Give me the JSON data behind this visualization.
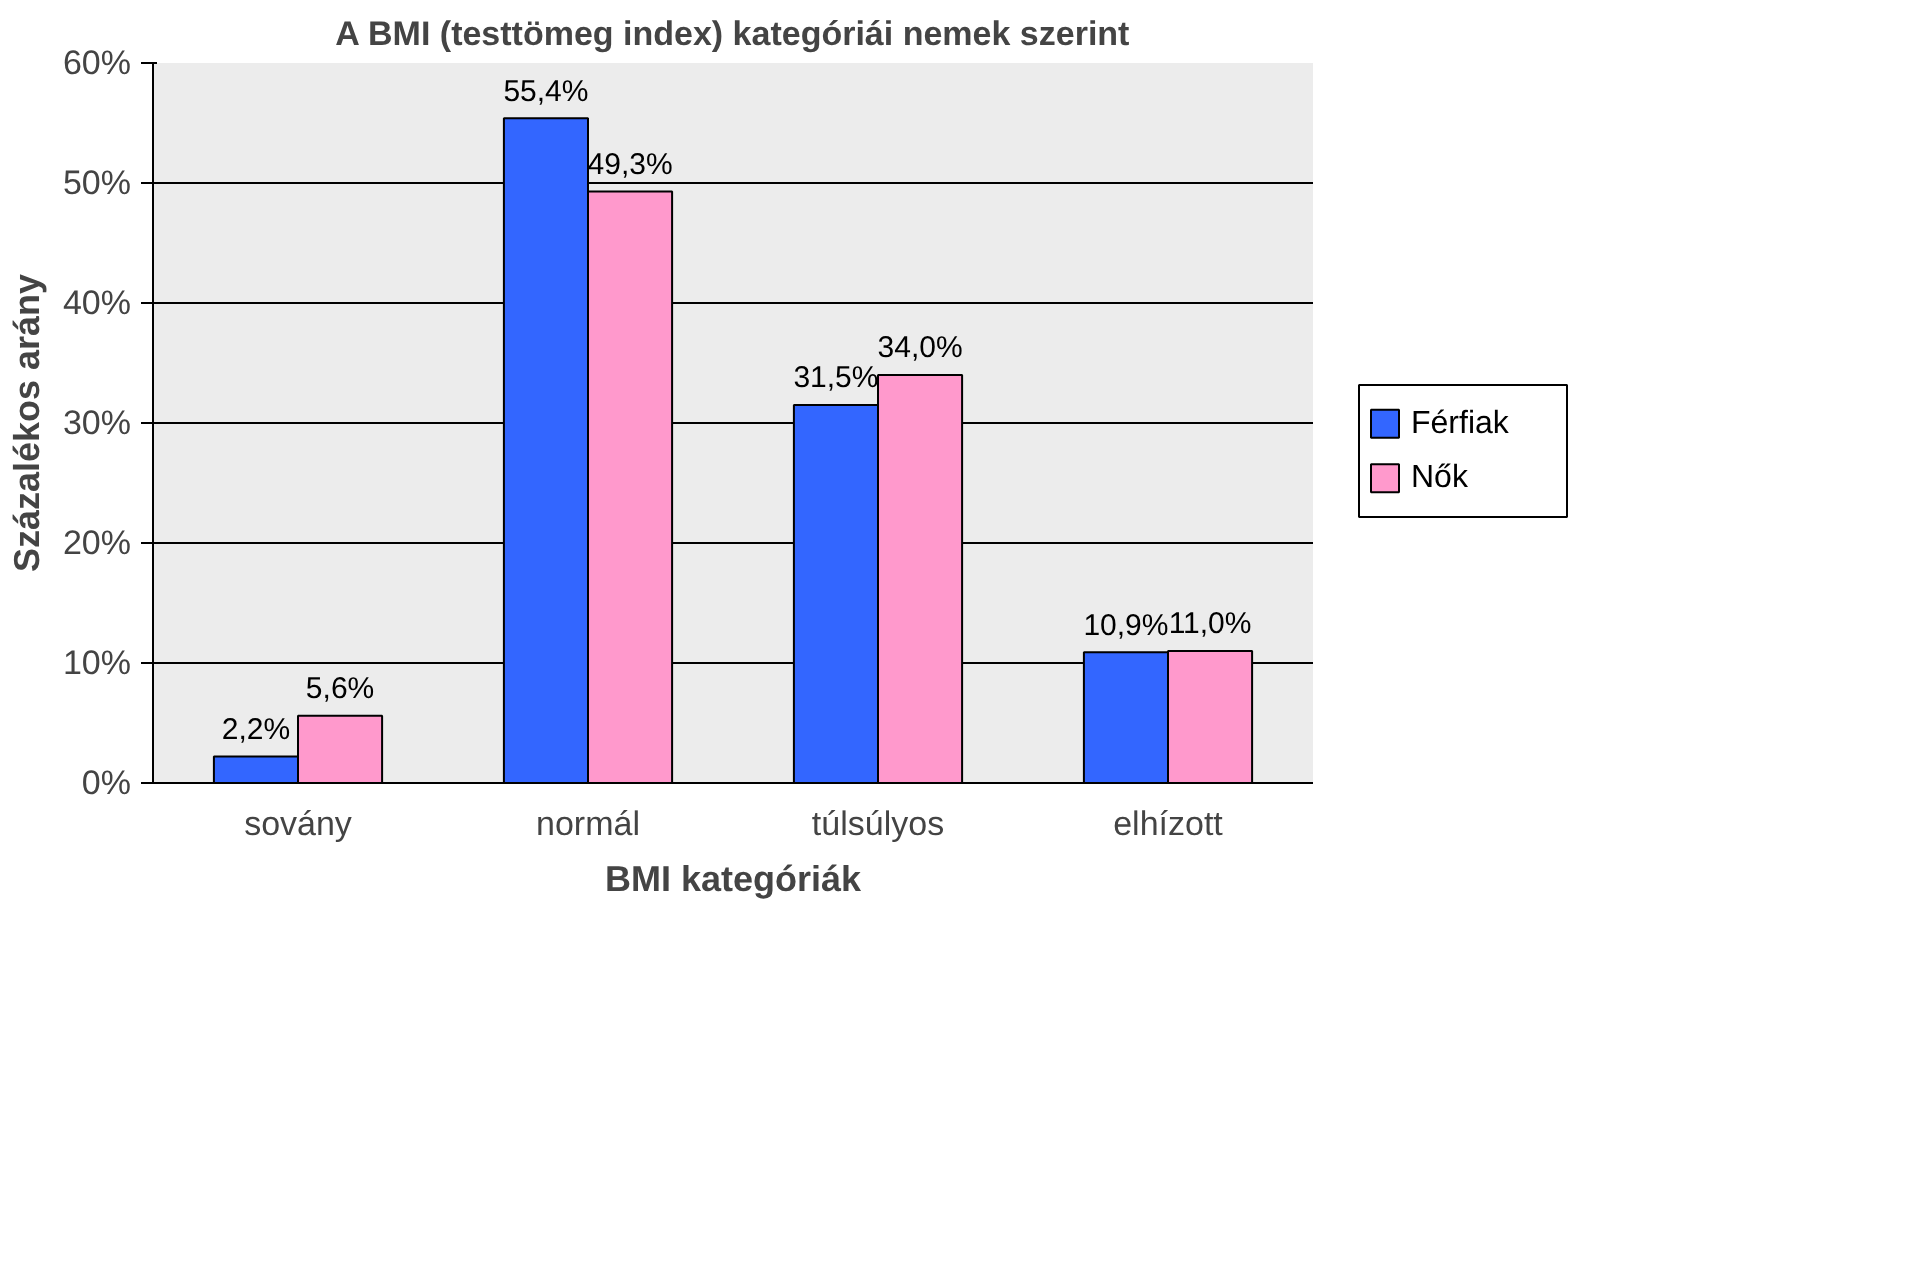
{
  "chart_data": {
    "type": "bar",
    "title": "A BMI (testtömeg index) kategóriái nemek szerint",
    "xlabel": "BMI kategóriák",
    "ylabel": "Százalékos arány",
    "categories": [
      "sovány",
      "normál",
      "túlsúlyos",
      "elhízott"
    ],
    "series": [
      {
        "name": "Férfiak",
        "color": "#3366ff",
        "values": [
          2.2,
          55.4,
          31.5,
          10.9
        ],
        "value_labels": [
          "2,2%",
          "55,4%",
          "31,5%",
          "10,9%"
        ]
      },
      {
        "name": "Nők",
        "color": "#ff99cc",
        "values": [
          5.6,
          49.3,
          34.0,
          11.0
        ],
        "value_labels": [
          "5,6%",
          "49,3%",
          "34,0%",
          "11,0%"
        ]
      }
    ],
    "ylim": [
      0,
      60
    ],
    "yticks": [
      {
        "value": 0,
        "label": "0%"
      },
      {
        "value": 10,
        "label": "10%"
      },
      {
        "value": 20,
        "label": "20%"
      },
      {
        "value": 30,
        "label": "30%"
      },
      {
        "value": 40,
        "label": "40%"
      },
      {
        "value": 50,
        "label": "50%"
      },
      {
        "value": 60,
        "label": "60%"
      }
    ],
    "grid": "y",
    "legend": "right"
  }
}
